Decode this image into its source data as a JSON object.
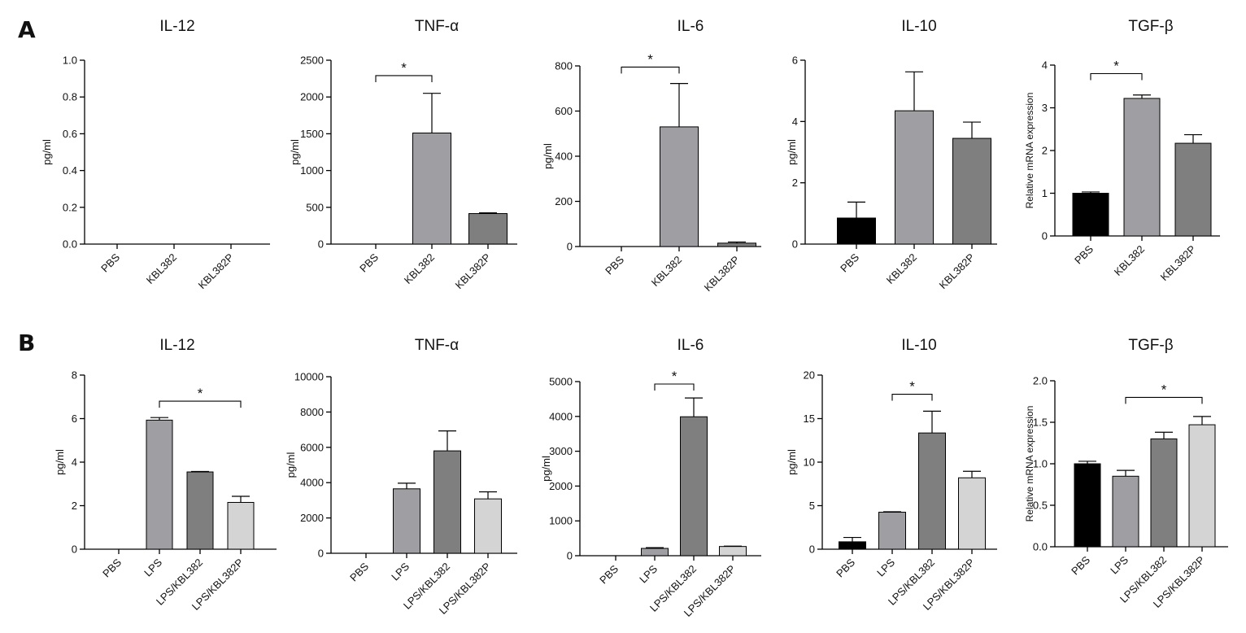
{
  "panels": [
    {
      "letter": "A"
    },
    {
      "letter": "B"
    }
  ],
  "chart_data": [
    {
      "type": "bar",
      "panel": "A",
      "title": "IL-12",
      "ylabel": "pg/ml",
      "ylim": [
        0,
        1.0
      ],
      "ticks": [
        0.0,
        0.2,
        0.4,
        0.6,
        0.8,
        1.0
      ],
      "tick_labels": [
        "0.0",
        "0.2",
        "0.4",
        "0.6",
        "0.8",
        "1.0"
      ],
      "categories": [
        "PBS",
        "KBL382",
        "KBL382P"
      ],
      "values": [
        0,
        0,
        0
      ],
      "errors": [
        0,
        0,
        0
      ],
      "colors": [
        "#000000",
        "#9e9ea3",
        "#7f7f7f"
      ],
      "sig": []
    },
    {
      "type": "bar",
      "panel": "A",
      "title": "TNF-α",
      "ylabel": "pg/ml",
      "ylim": [
        0,
        2500
      ],
      "ticks": [
        0,
        500,
        1000,
        1500,
        2000,
        2500
      ],
      "tick_labels": [
        "0",
        "500",
        "1000",
        "1500",
        "2000",
        "2500"
      ],
      "categories": [
        "PBS",
        "KBL382",
        "KBL382P"
      ],
      "values": [
        0,
        1510,
        415
      ],
      "errors": [
        0,
        540,
        10
      ],
      "colors": [
        "#000000",
        "#9e9ea3",
        "#7f7f7f"
      ],
      "sig": [
        {
          "from": 0,
          "to": 1,
          "y": 2290,
          "label": "*"
        }
      ]
    },
    {
      "type": "bar",
      "panel": "A",
      "title": "IL-6",
      "ylabel": "pg/ml",
      "ylim": [
        0,
        800
      ],
      "ticks": [
        0,
        200,
        400,
        600,
        800
      ],
      "tick_labels": [
        "0",
        "200",
        "400",
        "600",
        "800"
      ],
      "categories": [
        "PBS",
        "KBL382",
        "KBL382P"
      ],
      "values": [
        0,
        530,
        15
      ],
      "errors": [
        0,
        192,
        5
      ],
      "colors": [
        "#000000",
        "#9e9ea3",
        "#7f7f7f"
      ],
      "sig": [
        {
          "from": 0,
          "to": 1,
          "y": 795,
          "label": "*"
        }
      ]
    },
    {
      "type": "bar",
      "panel": "A",
      "title": "IL-10",
      "ylabel": "pg/ml",
      "ylim": [
        0,
        6
      ],
      "ticks": [
        0,
        2,
        4,
        6
      ],
      "tick_labels": [
        "0",
        "2",
        "4",
        "6"
      ],
      "categories": [
        "PBS",
        "KBL382",
        "KBL382P"
      ],
      "values": [
        0.85,
        4.35,
        3.45
      ],
      "errors": [
        0.52,
        1.27,
        0.53
      ],
      "colors": [
        "#000000",
        "#9e9ea3",
        "#7f7f7f"
      ],
      "sig": []
    },
    {
      "type": "bar",
      "panel": "A",
      "title": "TGF-β",
      "ylabel": "Relative mRNA expression",
      "ylim": [
        0,
        4
      ],
      "ticks": [
        0,
        1,
        2,
        3,
        4
      ],
      "tick_labels": [
        "0",
        "1",
        "2",
        "3",
        "4"
      ],
      "categories": [
        "PBS",
        "KBL382",
        "KBL382P"
      ],
      "values": [
        1.0,
        3.22,
        2.17
      ],
      "errors": [
        0.03,
        0.08,
        0.2
      ],
      "colors": [
        "#000000",
        "#9e9ea3",
        "#7f7f7f"
      ],
      "sig": [
        {
          "from": 0,
          "to": 1,
          "y": 3.8,
          "label": "*"
        }
      ]
    },
    {
      "type": "bar",
      "panel": "B",
      "title": "IL-12",
      "ylabel": "pg/ml",
      "ylim": [
        0,
        8
      ],
      "ticks": [
        0,
        2,
        4,
        6,
        8
      ],
      "tick_labels": [
        "0",
        "2",
        "4",
        "6",
        "8"
      ],
      "categories": [
        "PBS",
        "LPS",
        "LPS/KBL382",
        "LPS/KBL382P"
      ],
      "values": [
        0,
        5.93,
        3.55,
        2.15
      ],
      "errors": [
        0,
        0.12,
        0.02,
        0.28
      ],
      "colors": [
        "#000000",
        "#9e9ea3",
        "#7f7f7f",
        "#d4d4d4"
      ],
      "sig": [
        {
          "from": 1,
          "to": 3,
          "y": 6.8,
          "label": "*"
        }
      ]
    },
    {
      "type": "bar",
      "panel": "B",
      "title": "TNF-α",
      "ylabel": "pg/ml",
      "ylim": [
        0,
        10000
      ],
      "ticks": [
        0,
        2000,
        4000,
        6000,
        8000,
        10000
      ],
      "tick_labels": [
        "0",
        "2000",
        "4000",
        "6000",
        "8000",
        "10000"
      ],
      "categories": [
        "PBS",
        "LPS",
        "LPS/KBL382",
        "LPS/KBL382P"
      ],
      "values": [
        0,
        3650,
        5800,
        3080
      ],
      "errors": [
        0,
        320,
        1130,
        400
      ],
      "colors": [
        "#000000",
        "#9e9ea3",
        "#7f7f7f",
        "#d4d4d4"
      ],
      "sig": []
    },
    {
      "type": "bar",
      "panel": "B",
      "title": "IL-6",
      "ylabel": "pg/ml",
      "ylim": [
        0,
        5000
      ],
      "ticks": [
        0,
        1000,
        2000,
        3000,
        4000,
        5000
      ],
      "tick_labels": [
        "0",
        "1000",
        "2000",
        "3000",
        "4000",
        "5000"
      ],
      "categories": [
        "PBS",
        "LPS",
        "LPS/KBL382",
        "LPS/KBL382P"
      ],
      "values": [
        0,
        210,
        3990,
        265
      ],
      "errors": [
        0,
        20,
        540,
        10
      ],
      "colors": [
        "#000000",
        "#9e9ea3",
        "#7f7f7f",
        "#d4d4d4"
      ],
      "sig": [
        {
          "from": 1,
          "to": 2,
          "y": 4930,
          "label": "*"
        }
      ]
    },
    {
      "type": "bar",
      "panel": "B",
      "title": "IL-10",
      "ylabel": "pg/ml",
      "ylim": [
        0,
        20
      ],
      "ticks": [
        0,
        5,
        10,
        15,
        20
      ],
      "tick_labels": [
        "0",
        "5",
        "10",
        "15",
        "20"
      ],
      "categories": [
        "PBS",
        "LPS",
        "LPS/KBL382",
        "LPS/KBL382P"
      ],
      "values": [
        0.85,
        4.25,
        13.35,
        8.2
      ],
      "errors": [
        0.5,
        0.05,
        2.5,
        0.75
      ],
      "colors": [
        "#000000",
        "#9e9ea3",
        "#7f7f7f",
        "#d4d4d4"
      ],
      "sig": [
        {
          "from": 1,
          "to": 2,
          "y": 17.8,
          "label": "*"
        }
      ]
    },
    {
      "type": "bar",
      "panel": "B",
      "title": "TGF-β",
      "ylabel": "Relative mRNA expression",
      "ylim": [
        0,
        2.0
      ],
      "ticks": [
        0,
        0.5,
        1.0,
        1.5,
        2.0
      ],
      "tick_labels": [
        "0.0",
        "0.5",
        "1.0",
        "1.5",
        "2.0"
      ],
      "categories": [
        "PBS",
        "LPS",
        "LPS/KBL382",
        "LPS/KBL382P"
      ],
      "values": [
        1.0,
        0.85,
        1.3,
        1.47
      ],
      "errors": [
        0.03,
        0.07,
        0.08,
        0.1
      ],
      "colors": [
        "#000000",
        "#9e9ea3",
        "#7f7f7f",
        "#d4d4d4"
      ],
      "sig": [
        {
          "from": 1,
          "to": 3,
          "y": 1.8,
          "label": "*"
        }
      ]
    }
  ]
}
